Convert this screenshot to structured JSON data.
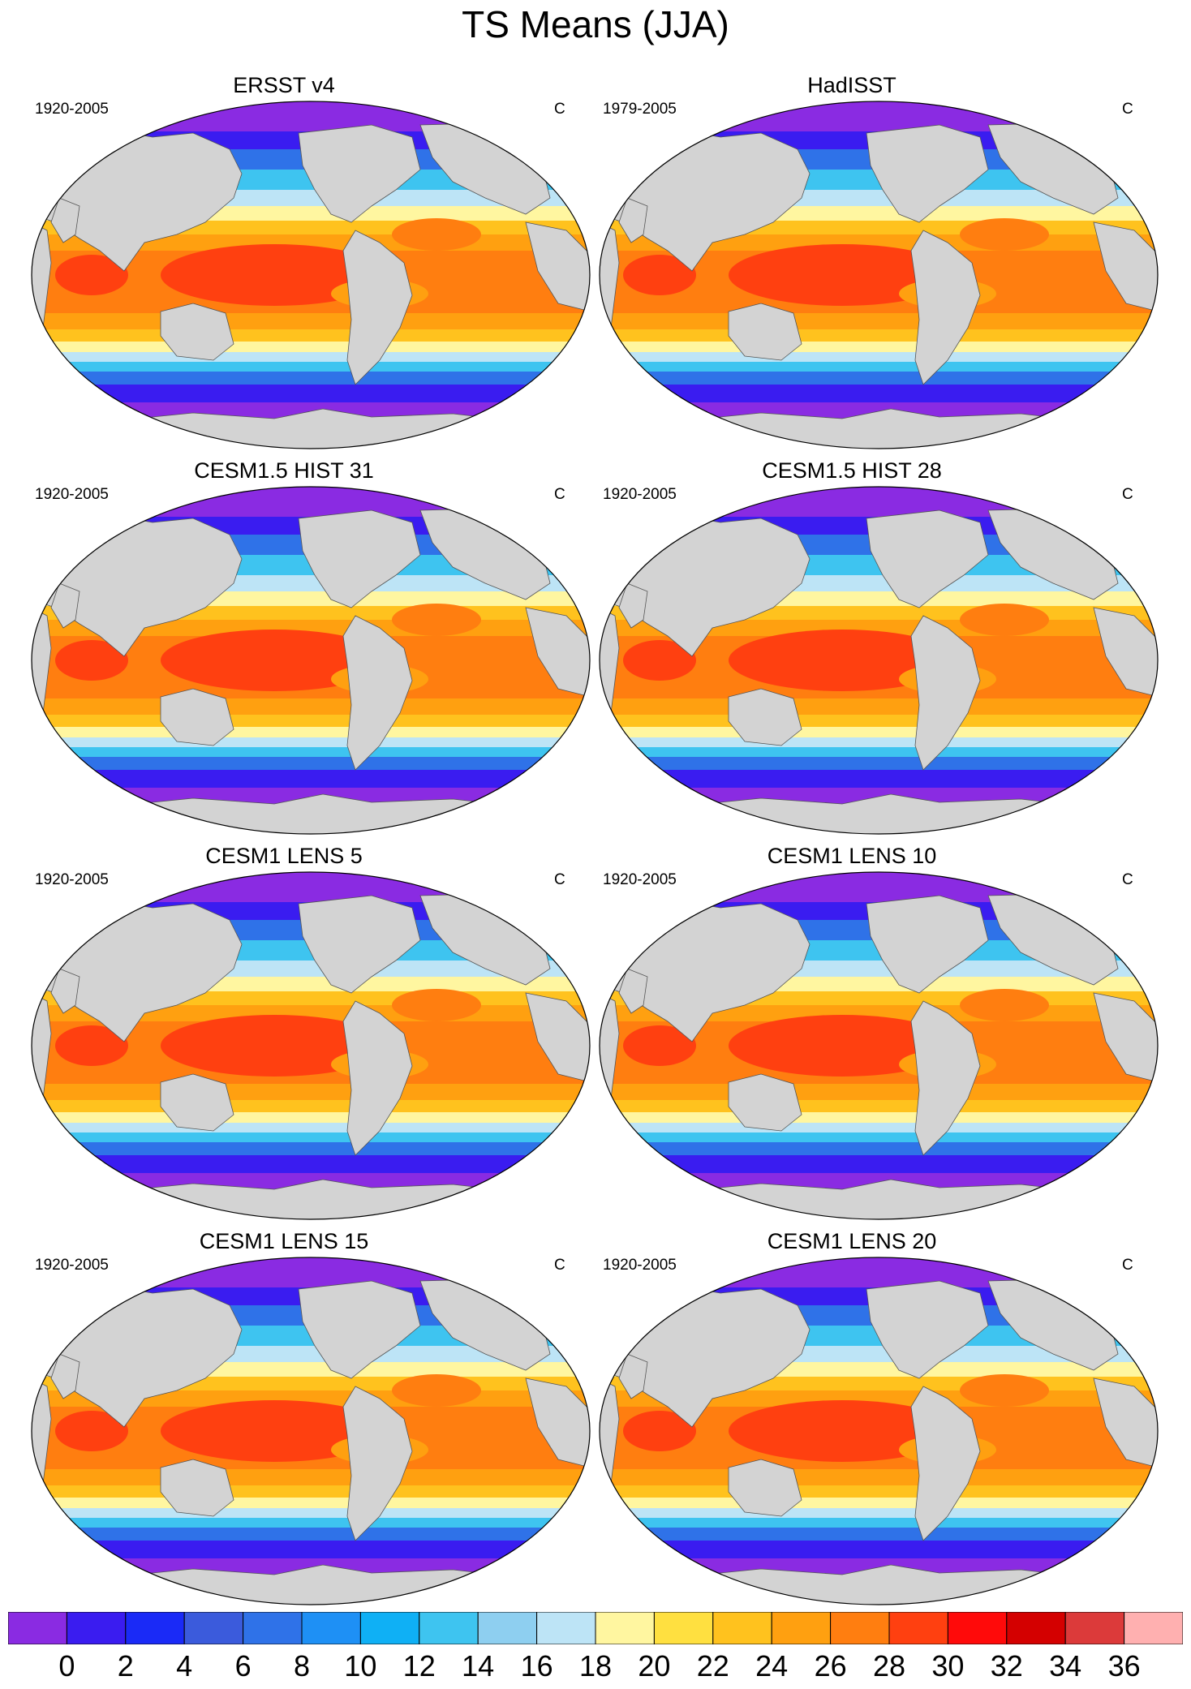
{
  "title": "TS Means (JJA)",
  "panels": [
    {
      "title": "ERSST v4",
      "period": "1920-2005",
      "units": "C"
    },
    {
      "title": "HadISST",
      "period": "1979-2005",
      "units": "C"
    },
    {
      "title": "CESM1.5 HIST 31",
      "period": "1920-2005",
      "units": "C"
    },
    {
      "title": "CESM1.5 HIST 28",
      "period": "1920-2005",
      "units": "C"
    },
    {
      "title": "CESM1 LENS 5",
      "period": "1920-2005",
      "units": "C"
    },
    {
      "title": "CESM1 LENS 10",
      "period": "1920-2005",
      "units": "C"
    },
    {
      "title": "CESM1 LENS 15",
      "period": "1920-2005",
      "units": "C"
    },
    {
      "title": "CESM1 LENS 20",
      "period": "1920-2005",
      "units": "C"
    }
  ],
  "colorbar": {
    "labels": [
      "0",
      "2",
      "4",
      "6",
      "8",
      "10",
      "12",
      "14",
      "16",
      "18",
      "20",
      "22",
      "24",
      "26",
      "28",
      "30",
      "32",
      "34",
      "36"
    ],
    "colors": [
      "#8a2be2",
      "#3a1cf0",
      "#1a2af7",
      "#3b5bdc",
      "#2f72e8",
      "#1e90f5",
      "#0fb0f5",
      "#3ec4f0",
      "#8ecff0",
      "#bde4f6",
      "#fff6a0",
      "#ffe040",
      "#ffc21e",
      "#ffa010",
      "#ff7e10",
      "#ff4010",
      "#ff0a0a",
      "#d40000",
      "#dc3a3a",
      "#ffb0b0"
    ]
  },
  "map_colors": {
    "land": "#d3d3d3",
    "polar": "#8a2be2",
    "deep_blue": "#3a1cf0",
    "blue": "#2f72e8",
    "light_blue": "#3ec4f0",
    "pale_blue": "#bde4f6",
    "pale_yellow": "#fff6a0",
    "yellow": "#ffc21e",
    "orange": "#ffa010",
    "dark_orange": "#ff7e10",
    "red_orange": "#ff4010"
  }
}
